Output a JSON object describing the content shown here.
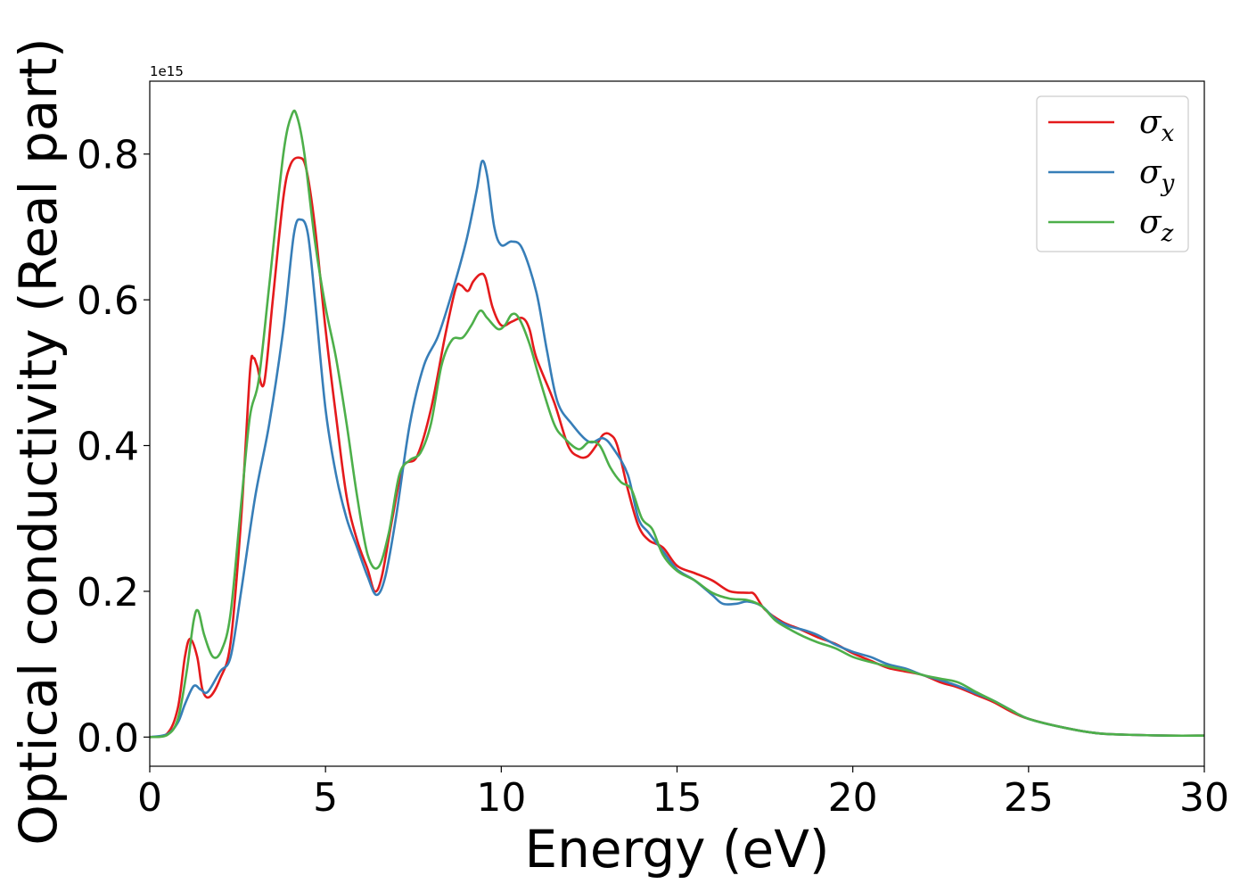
{
  "chart_data": {
    "type": "line",
    "xlabel": "Energy (eV)",
    "ylabel": "Optical conductivity (Real part)",
    "y_offset_text": "1e15",
    "xlim": [
      0,
      30
    ],
    "ylim": [
      -0.04,
      0.9
    ],
    "x_ticks": [
      0,
      5,
      10,
      15,
      20,
      25,
      30
    ],
    "x_tick_labels": [
      "0",
      "5",
      "10",
      "15",
      "20",
      "25",
      "30"
    ],
    "y_ticks": [
      0.0,
      0.2,
      0.4,
      0.6,
      0.8
    ],
    "y_tick_labels": [
      "0.0",
      "0.2",
      "0.4",
      "0.6",
      "0.8"
    ],
    "grid": false,
    "legend_position": "top-right",
    "series": [
      {
        "name": "x",
        "color": "#e41a1c",
        "points": [
          [
            0,
            0
          ],
          [
            0.5,
            0.005
          ],
          [
            0.8,
            0.04
          ],
          [
            1.0,
            0.11
          ],
          [
            1.15,
            0.135
          ],
          [
            1.35,
            0.11
          ],
          [
            1.5,
            0.065
          ],
          [
            1.7,
            0.055
          ],
          [
            2.0,
            0.08
          ],
          [
            2.3,
            0.13
          ],
          [
            2.6,
            0.3
          ],
          [
            2.85,
            0.5
          ],
          [
            2.95,
            0.52
          ],
          [
            3.05,
            0.51
          ],
          [
            3.25,
            0.485
          ],
          [
            3.5,
            0.6
          ],
          [
            3.8,
            0.74
          ],
          [
            4.0,
            0.785
          ],
          [
            4.25,
            0.795
          ],
          [
            4.45,
            0.78
          ],
          [
            4.7,
            0.7
          ],
          [
            5.0,
            0.56
          ],
          [
            5.3,
            0.44
          ],
          [
            5.6,
            0.33
          ],
          [
            5.9,
            0.27
          ],
          [
            6.2,
            0.23
          ],
          [
            6.4,
            0.2
          ],
          [
            6.6,
            0.22
          ],
          [
            6.9,
            0.3
          ],
          [
            7.2,
            0.37
          ],
          [
            7.6,
            0.385
          ],
          [
            8.0,
            0.45
          ],
          [
            8.4,
            0.55
          ],
          [
            8.7,
            0.615
          ],
          [
            8.85,
            0.62
          ],
          [
            9.05,
            0.612
          ],
          [
            9.2,
            0.625
          ],
          [
            9.4,
            0.635
          ],
          [
            9.55,
            0.63
          ],
          [
            9.75,
            0.59
          ],
          [
            10.0,
            0.565
          ],
          [
            10.3,
            0.57
          ],
          [
            10.6,
            0.575
          ],
          [
            10.8,
            0.56
          ],
          [
            11.0,
            0.52
          ],
          [
            11.5,
            0.46
          ],
          [
            11.9,
            0.4
          ],
          [
            12.2,
            0.385
          ],
          [
            12.45,
            0.385
          ],
          [
            12.7,
            0.4
          ],
          [
            12.9,
            0.415
          ],
          [
            13.1,
            0.415
          ],
          [
            13.3,
            0.4
          ],
          [
            13.6,
            0.34
          ],
          [
            13.9,
            0.29
          ],
          [
            14.2,
            0.27
          ],
          [
            14.6,
            0.26
          ],
          [
            15.0,
            0.235
          ],
          [
            15.5,
            0.225
          ],
          [
            16.0,
            0.215
          ],
          [
            16.5,
            0.2
          ],
          [
            17.0,
            0.198
          ],
          [
            17.2,
            0.196
          ],
          [
            17.5,
            0.175
          ],
          [
            18.0,
            0.158
          ],
          [
            18.5,
            0.148
          ],
          [
            19.0,
            0.137
          ],
          [
            19.5,
            0.128
          ],
          [
            20.0,
            0.115
          ],
          [
            20.5,
            0.105
          ],
          [
            21.0,
            0.095
          ],
          [
            21.5,
            0.09
          ],
          [
            22.0,
            0.085
          ],
          [
            22.5,
            0.075
          ],
          [
            23.0,
            0.068
          ],
          [
            23.5,
            0.058
          ],
          [
            24.0,
            0.048
          ],
          [
            24.5,
            0.035
          ],
          [
            25.0,
            0.025
          ],
          [
            26.0,
            0.013
          ],
          [
            27.0,
            0.005
          ],
          [
            28.0,
            0.003
          ],
          [
            29.0,
            0.002
          ],
          [
            30.0,
            0.002
          ]
        ]
      },
      {
        "name": "y",
        "color": "#377eb8",
        "points": [
          [
            0,
            0
          ],
          [
            0.5,
            0.004
          ],
          [
            0.8,
            0.02
          ],
          [
            1.0,
            0.045
          ],
          [
            1.25,
            0.07
          ],
          [
            1.45,
            0.065
          ],
          [
            1.65,
            0.062
          ],
          [
            2.0,
            0.09
          ],
          [
            2.3,
            0.11
          ],
          [
            2.6,
            0.2
          ],
          [
            3.0,
            0.33
          ],
          [
            3.4,
            0.43
          ],
          [
            3.8,
            0.56
          ],
          [
            4.1,
            0.69
          ],
          [
            4.3,
            0.71
          ],
          [
            4.5,
            0.69
          ],
          [
            4.7,
            0.6
          ],
          [
            5.0,
            0.45
          ],
          [
            5.3,
            0.36
          ],
          [
            5.6,
            0.3
          ],
          [
            5.9,
            0.26
          ],
          [
            6.2,
            0.22
          ],
          [
            6.45,
            0.195
          ],
          [
            6.7,
            0.22
          ],
          [
            7.0,
            0.3
          ],
          [
            7.4,
            0.43
          ],
          [
            7.8,
            0.51
          ],
          [
            8.2,
            0.55
          ],
          [
            8.6,
            0.61
          ],
          [
            9.0,
            0.68
          ],
          [
            9.3,
            0.75
          ],
          [
            9.45,
            0.79
          ],
          [
            9.6,
            0.77
          ],
          [
            9.8,
            0.7
          ],
          [
            10.0,
            0.675
          ],
          [
            10.3,
            0.68
          ],
          [
            10.6,
            0.67
          ],
          [
            11.0,
            0.61
          ],
          [
            11.3,
            0.53
          ],
          [
            11.6,
            0.46
          ],
          [
            12.0,
            0.43
          ],
          [
            12.5,
            0.405
          ],
          [
            12.9,
            0.41
          ],
          [
            13.2,
            0.395
          ],
          [
            13.6,
            0.36
          ],
          [
            13.9,
            0.3
          ],
          [
            14.2,
            0.28
          ],
          [
            14.6,
            0.255
          ],
          [
            15.0,
            0.23
          ],
          [
            15.5,
            0.215
          ],
          [
            16.0,
            0.195
          ],
          [
            16.3,
            0.183
          ],
          [
            16.7,
            0.183
          ],
          [
            17.0,
            0.186
          ],
          [
            17.4,
            0.18
          ],
          [
            17.8,
            0.162
          ],
          [
            18.2,
            0.152
          ],
          [
            18.6,
            0.147
          ],
          [
            19.0,
            0.14
          ],
          [
            19.5,
            0.127
          ],
          [
            20.0,
            0.117
          ],
          [
            20.5,
            0.11
          ],
          [
            21.0,
            0.1
          ],
          [
            21.5,
            0.094
          ],
          [
            22.0,
            0.085
          ],
          [
            22.5,
            0.078
          ],
          [
            23.0,
            0.07
          ],
          [
            23.5,
            0.06
          ],
          [
            24.0,
            0.05
          ],
          [
            24.5,
            0.037
          ],
          [
            25.0,
            0.025
          ],
          [
            26.0,
            0.013
          ],
          [
            27.0,
            0.005
          ],
          [
            28.0,
            0.003
          ],
          [
            29.0,
            0.002
          ],
          [
            30.0,
            0.002
          ]
        ]
      },
      {
        "name": "z",
        "color": "#4daf4a",
        "points": [
          [
            0,
            0
          ],
          [
            0.5,
            0.003
          ],
          [
            0.8,
            0.025
          ],
          [
            1.05,
            0.09
          ],
          [
            1.25,
            0.16
          ],
          [
            1.38,
            0.173
          ],
          [
            1.55,
            0.14
          ],
          [
            1.8,
            0.11
          ],
          [
            2.05,
            0.12
          ],
          [
            2.3,
            0.17
          ],
          [
            2.6,
            0.32
          ],
          [
            2.85,
            0.44
          ],
          [
            3.1,
            0.49
          ],
          [
            3.4,
            0.62
          ],
          [
            3.8,
            0.8
          ],
          [
            4.05,
            0.855
          ],
          [
            4.2,
            0.85
          ],
          [
            4.4,
            0.8
          ],
          [
            4.7,
            0.68
          ],
          [
            5.0,
            0.59
          ],
          [
            5.3,
            0.52
          ],
          [
            5.6,
            0.43
          ],
          [
            5.9,
            0.33
          ],
          [
            6.2,
            0.25
          ],
          [
            6.5,
            0.233
          ],
          [
            6.8,
            0.28
          ],
          [
            7.1,
            0.36
          ],
          [
            7.4,
            0.38
          ],
          [
            7.7,
            0.39
          ],
          [
            8.0,
            0.43
          ],
          [
            8.3,
            0.51
          ],
          [
            8.6,
            0.545
          ],
          [
            8.9,
            0.548
          ],
          [
            9.15,
            0.565
          ],
          [
            9.4,
            0.585
          ],
          [
            9.6,
            0.575
          ],
          [
            9.9,
            0.56
          ],
          [
            10.1,
            0.565
          ],
          [
            10.3,
            0.58
          ],
          [
            10.5,
            0.575
          ],
          [
            10.8,
            0.54
          ],
          [
            11.1,
            0.49
          ],
          [
            11.5,
            0.43
          ],
          [
            11.8,
            0.41
          ],
          [
            12.2,
            0.395
          ],
          [
            12.5,
            0.405
          ],
          [
            12.8,
            0.4
          ],
          [
            13.1,
            0.37
          ],
          [
            13.4,
            0.35
          ],
          [
            13.7,
            0.34
          ],
          [
            14.0,
            0.3
          ],
          [
            14.3,
            0.285
          ],
          [
            14.6,
            0.25
          ],
          [
            15.0,
            0.228
          ],
          [
            15.5,
            0.215
          ],
          [
            16.0,
            0.198
          ],
          [
            16.5,
            0.19
          ],
          [
            17.0,
            0.188
          ],
          [
            17.4,
            0.18
          ],
          [
            17.8,
            0.16
          ],
          [
            18.2,
            0.148
          ],
          [
            18.6,
            0.138
          ],
          [
            19.0,
            0.13
          ],
          [
            19.5,
            0.122
          ],
          [
            20.0,
            0.11
          ],
          [
            20.5,
            0.103
          ],
          [
            21.0,
            0.097
          ],
          [
            21.5,
            0.092
          ],
          [
            22.0,
            0.085
          ],
          [
            22.5,
            0.08
          ],
          [
            23.0,
            0.075
          ],
          [
            23.5,
            0.062
          ],
          [
            24.0,
            0.05
          ],
          [
            24.5,
            0.037
          ],
          [
            25.0,
            0.025
          ],
          [
            26.0,
            0.013
          ],
          [
            27.0,
            0.005
          ],
          [
            28.0,
            0.003
          ],
          [
            29.0,
            0.002
          ],
          [
            30.0,
            0.002
          ]
        ]
      }
    ]
  }
}
